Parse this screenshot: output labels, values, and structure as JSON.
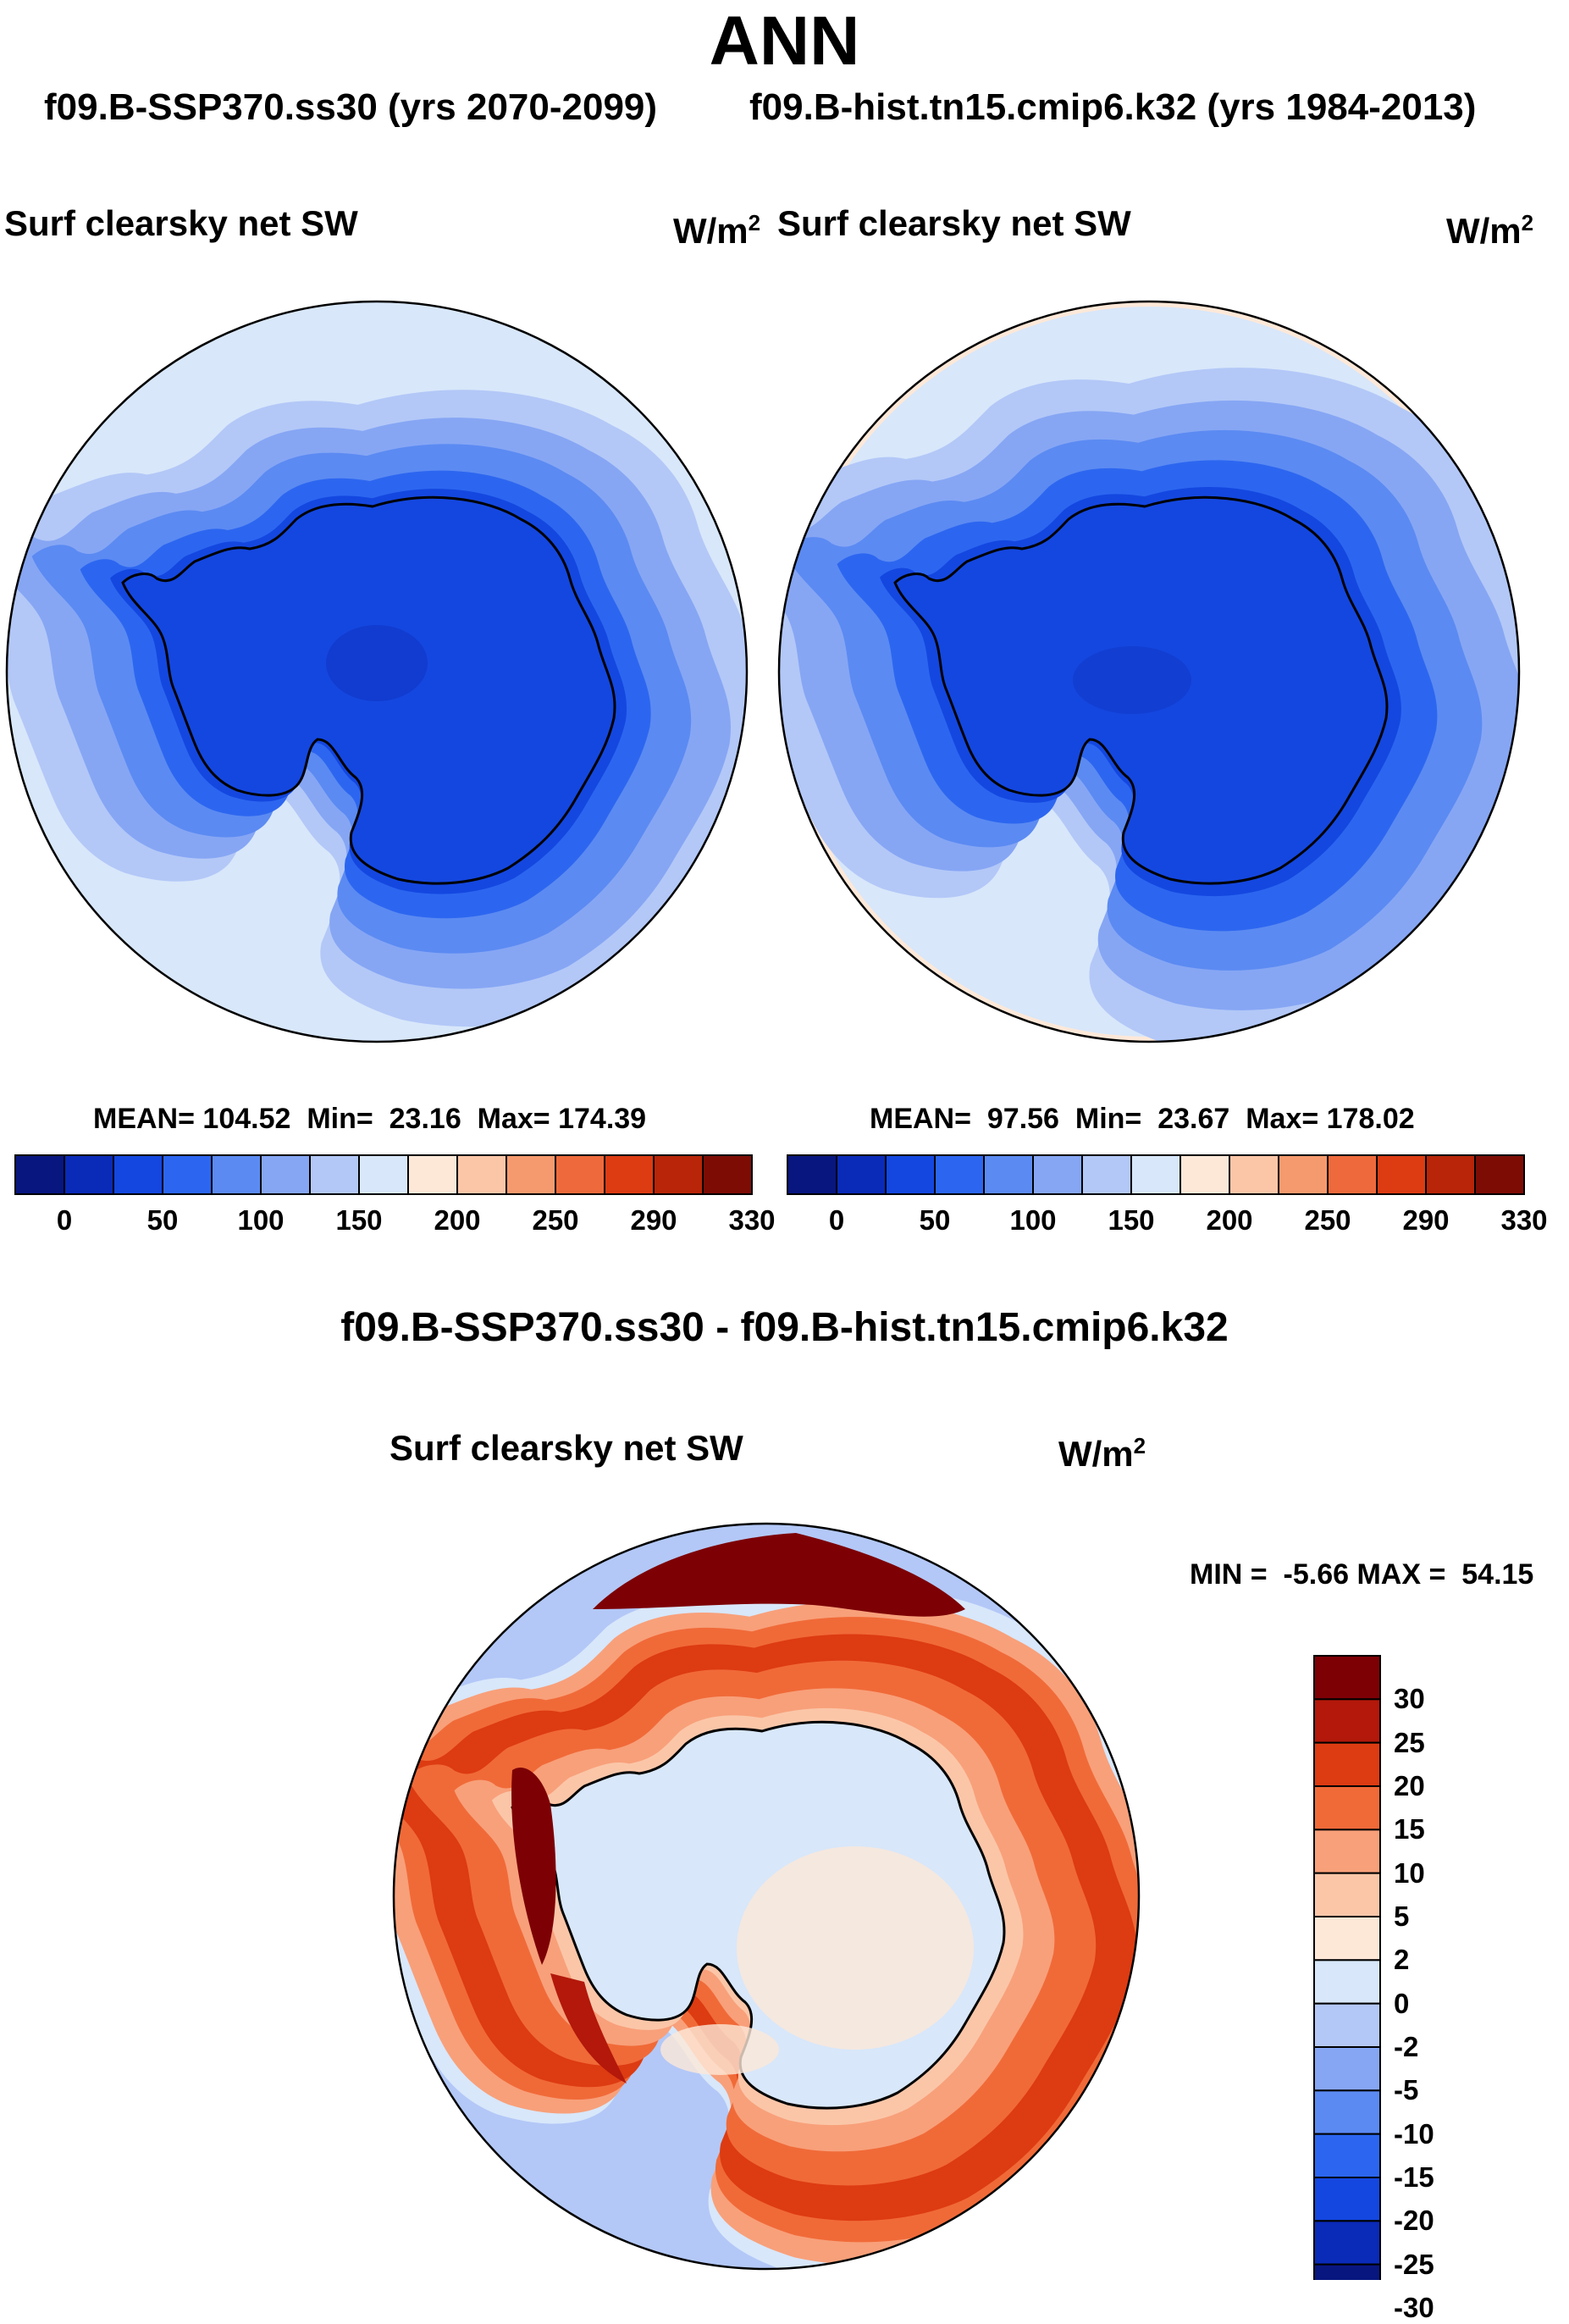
{
  "main_title": "ANN",
  "case_a": "f09.B-SSP370.ss30 (yrs 2070-2099)",
  "case_b": "f09.B-hist.tn15.cmip6.k32 (yrs 1984-2013)",
  "diff_title": "f09.B-SSP370.ss30 - f09.B-hist.tn15.cmip6.k32",
  "variable": "Surf clearsky net SW",
  "units_base": "W/m",
  "units_exp": "2",
  "left_panel": {
    "mean_label": "MEAN=",
    "mean": "104.52",
    "min_label": "Min=",
    "min": "23.16",
    "max_label": "Max=",
    "max": "174.39"
  },
  "right_panel": {
    "mean_label": "MEAN=",
    "mean": "97.56",
    "min_label": "Min=",
    "min": "23.67",
    "max_label": "Max=",
    "max": "178.02"
  },
  "diff_panel": {
    "min_label": "MIN =",
    "min": "-5.66",
    "max_label": "MAX =",
    "max": "54.15"
  },
  "abs_colorbar": {
    "colors": [
      "#08167f",
      "#0a2ab8",
      "#1447e0",
      "#2c66f0",
      "#5b8af2",
      "#86a6f4",
      "#b3c8f7",
      "#d8e7fa",
      "#fde8d8",
      "#fbc6a8",
      "#f59a6e",
      "#ee6a3c",
      "#dd3b12",
      "#b82508",
      "#7d0c05"
    ],
    "labels": [
      "0",
      "50",
      "100",
      "150",
      "200",
      "250",
      "290",
      "330"
    ]
  },
  "diff_colorbar": {
    "colors": [
      "#7d0005",
      "#b3180a",
      "#dd3b12",
      "#f06a38",
      "#f8a07a",
      "#fbc6a8",
      "#fde8d8",
      "#d8e7fa",
      "#b3c8f7",
      "#86a6f4",
      "#5b8af2",
      "#2c66f0",
      "#1447e0",
      "#0a2ab8",
      "#08167f"
    ],
    "labels": [
      "30",
      "25",
      "20",
      "15",
      "10",
      "5",
      "2",
      "0",
      "-2",
      "-5",
      "-10",
      "-15",
      "-20",
      "-25",
      "-30"
    ]
  },
  "map_colors": {
    "open_ocean": "#d8e7fa",
    "ring1": "#b3c8f7",
    "ring2": "#86a6f4",
    "ring3": "#5b8af2",
    "ring4": "#2c66f0",
    "continent": "#1447e0",
    "diff_ocean": "#b3c8f7",
    "diff_ring0": "#d8e7fa",
    "diff_ring1": "#f8a07a",
    "diff_ring2": "#f06a38",
    "diff_ring3": "#dd3b12",
    "diff_dark": "#7d0005",
    "diff_continent": "#d8e7fa",
    "diff_patch": "#fde8d8"
  }
}
